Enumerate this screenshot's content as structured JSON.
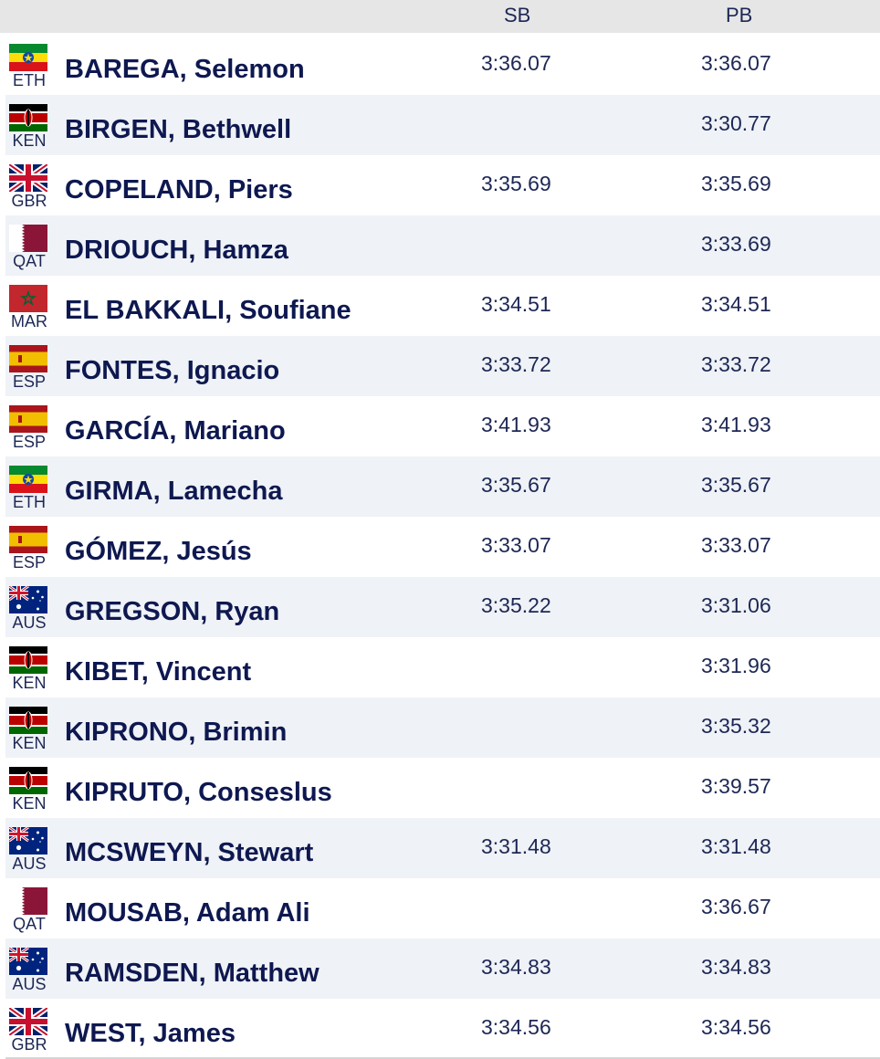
{
  "columns": {
    "sb": "SB",
    "pb": "PB"
  },
  "rows": [
    {
      "country": "ETH",
      "name": "BAREGA, Selemon",
      "sb": "3:36.07",
      "pb": "3:36.07"
    },
    {
      "country": "KEN",
      "name": "BIRGEN, Bethwell",
      "sb": "",
      "pb": "3:30.77"
    },
    {
      "country": "GBR",
      "name": "COPELAND, Piers",
      "sb": "3:35.69",
      "pb": "3:35.69"
    },
    {
      "country": "QAT",
      "name": "DRIOUCH, Hamza",
      "sb": "",
      "pb": "3:33.69"
    },
    {
      "country": "MAR",
      "name": "EL BAKKALI, Soufiane",
      "sb": "3:34.51",
      "pb": "3:34.51"
    },
    {
      "country": "ESP",
      "name": "FONTES, Ignacio",
      "sb": "3:33.72",
      "pb": "3:33.72"
    },
    {
      "country": "ESP",
      "name": "GARCÍA, Mariano",
      "sb": "3:41.93",
      "pb": "3:41.93"
    },
    {
      "country": "ETH",
      "name": "GIRMA, Lamecha",
      "sb": "3:35.67",
      "pb": "3:35.67"
    },
    {
      "country": "ESP",
      "name": "GÓMEZ, Jesús",
      "sb": "3:33.07",
      "pb": "3:33.07"
    },
    {
      "country": "AUS",
      "name": "GREGSON, Ryan",
      "sb": "3:35.22",
      "pb": "3:31.06"
    },
    {
      "country": "KEN",
      "name": "KIBET, Vincent",
      "sb": "",
      "pb": "3:31.96"
    },
    {
      "country": "KEN",
      "name": "KIPRONO, Brimin",
      "sb": "",
      "pb": "3:35.32"
    },
    {
      "country": "KEN",
      "name": "KIPRUTO, Conseslus",
      "sb": "",
      "pb": "3:39.57"
    },
    {
      "country": "AUS",
      "name": "MCSWEYN, Stewart",
      "sb": "3:31.48",
      "pb": "3:31.48"
    },
    {
      "country": "QAT",
      "name": "MOUSAB, Adam Ali",
      "sb": "",
      "pb": "3:36.67"
    },
    {
      "country": "AUS",
      "name": "RAMSDEN, Matthew",
      "sb": "3:34.83",
      "pb": "3:34.83"
    },
    {
      "country": "GBR",
      "name": "WEST, James",
      "sb": "3:34.56",
      "pb": "3:34.56"
    }
  ],
  "colors": {
    "text": "#0e1850",
    "header_bg": "#e6e6e6",
    "row_alt_bg": "#eff2f6"
  }
}
